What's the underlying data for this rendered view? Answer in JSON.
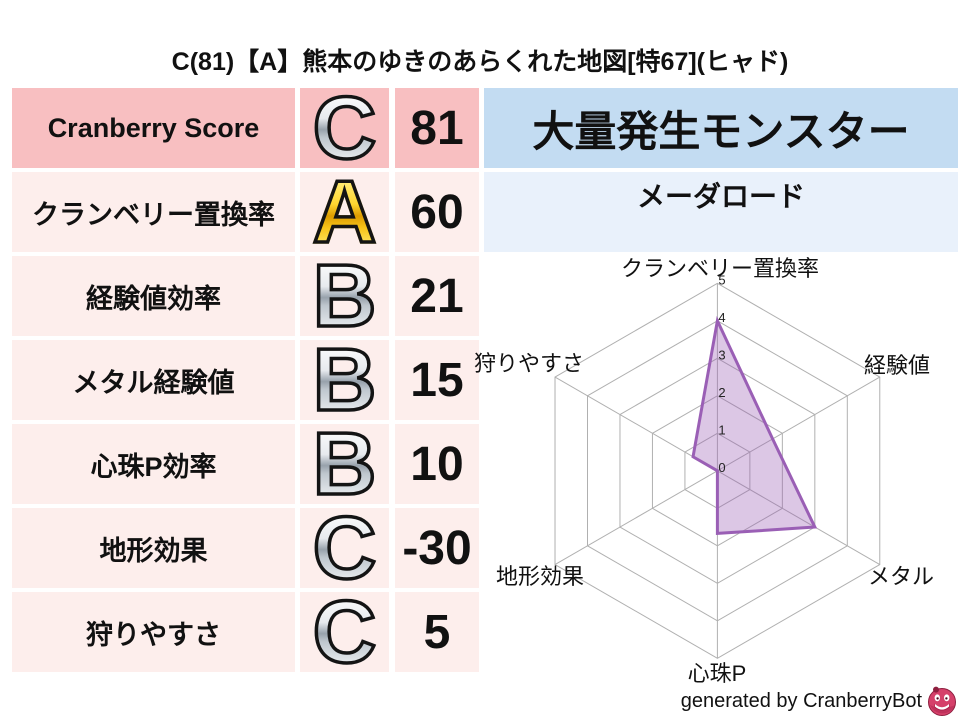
{
  "title": "C(81)【A】熊本のゆきのあらくれた地図[特67](ヒャド)",
  "score_table": {
    "rows": [
      {
        "label": "Cranberry Score",
        "grade": "C",
        "value": "81"
      },
      {
        "label": "クランベリー置換率",
        "grade": "A",
        "value": "60"
      },
      {
        "label": "経験値効率",
        "grade": "B",
        "value": "21"
      },
      {
        "label": "メタル経験値",
        "grade": "B",
        "value": "15"
      },
      {
        "label": "心珠P効率",
        "grade": "B",
        "value": "10"
      },
      {
        "label": "地形効果",
        "grade": "C",
        "value": "-30"
      },
      {
        "label": "狩りやすさ",
        "grade": "C",
        "value": "5"
      }
    ]
  },
  "monster_panel": {
    "header": "大量発生モンスター",
    "name": "メーダロード"
  },
  "chart_data": {
    "type": "radar",
    "categories": [
      "クランベリー置換率",
      "経験値",
      "メタル",
      "心珠P",
      "地形効果",
      "狩りやすさ"
    ],
    "values": [
      4,
      1.7,
      3,
      1.67,
      0,
      0.75
    ],
    "rmin": 0,
    "rmax": 5,
    "tick_labels": [
      "0",
      "1",
      "2",
      "3",
      "4",
      "5"
    ],
    "grid": "on",
    "legend": "none",
    "series_color": "#9a5fb5",
    "fill_color": "rgba(154,95,181,0.35)",
    "grid_color": "#b0b0b0"
  },
  "footer": {
    "credit": "generated by CranberryBot",
    "logo": "cranberry-bot-icon"
  },
  "colors": {
    "row_highlight_bg": "#f8bfc1",
    "row_bg": "#fdeeec",
    "panel_header_bg": "#c3dcf2",
    "panel_cell_bg": "#e9f1fb",
    "grade_gold": "#f5c400",
    "grade_silver": "#c6ccd2",
    "accent_purple": "#9a5fb5",
    "text": "#111111"
  }
}
